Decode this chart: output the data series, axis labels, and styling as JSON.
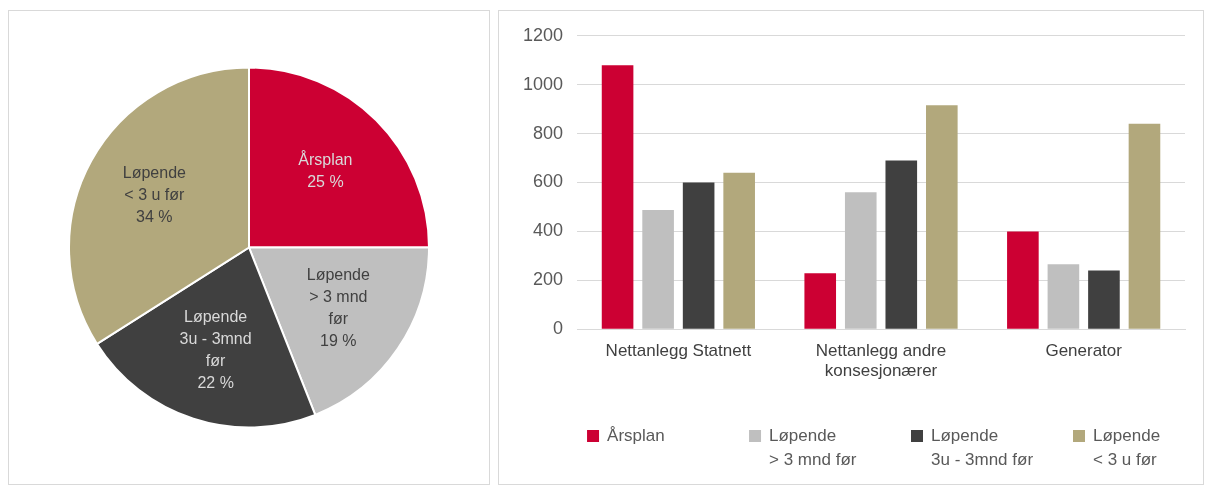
{
  "chart_data": [
    {
      "type": "pie",
      "categories": [
        "Årsplan",
        "Løpende\n> 3 mnd\nfør",
        "Løpende\n3u - 3mnd\nfør",
        "Løpende\n< 3 u før"
      ],
      "values": [
        25,
        19,
        22,
        34
      ],
      "colors": [
        "#cc0033",
        "#bfbfbf",
        "#404040",
        "#b2a87c"
      ],
      "value_labels": [
        "25 %",
        "19 %",
        "22 %",
        "34 %"
      ]
    },
    {
      "type": "bar",
      "categories": [
        "Nettanlegg Statnett",
        "Nettanlegg andre\nkonsesjonærer",
        "Generator"
      ],
      "series": [
        {
          "name": "Årsplan",
          "color": "#cc0033",
          "values": [
            1080,
            229,
            400
          ]
        },
        {
          "name": "Løpende\n> 3 mnd før",
          "color": "#bfbfbf",
          "values": [
            488,
            560,
            266
          ]
        },
        {
          "name": "Løpende\n3u - 3mnd før",
          "color": "#404040",
          "values": [
            600,
            690,
            240
          ]
        },
        {
          "name": "Løpende\n< 3 u før",
          "color": "#b2a87c",
          "values": [
            640,
            916,
            840
          ]
        }
      ],
      "ylim": [
        0,
        1200
      ],
      "yticks": [
        0,
        200,
        400,
        600,
        800,
        1000,
        1200
      ],
      "grid": "y",
      "legend": "bottom"
    }
  ]
}
